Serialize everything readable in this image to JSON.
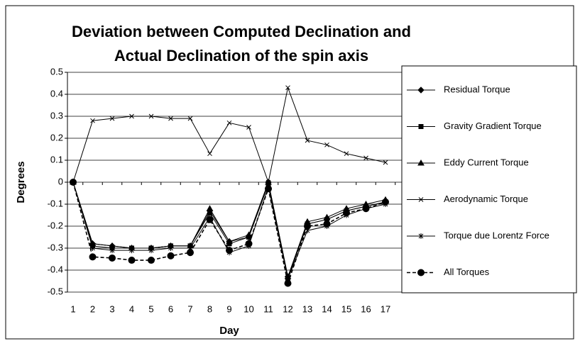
{
  "chart_data": {
    "type": "line",
    "title": "Deviation between Computed Declination  and",
    "subtitle": "Actual Declination of the spin axis",
    "x_label": "Day",
    "y_label": "Degrees",
    "categories": [
      "1",
      "2",
      "3",
      "4",
      "5",
      "6",
      "7",
      "8",
      "9",
      "10",
      "11",
      "12",
      "13",
      "14",
      "15",
      "16",
      "17"
    ],
    "series": [
      {
        "name": "Residual Torque",
        "color": "#000000",
        "marker": "diamond",
        "dash": false,
        "values": [
          0,
          -0.28,
          -0.29,
          -0.3,
          -0.3,
          -0.29,
          -0.29,
          -0.13,
          -0.27,
          -0.25,
          0,
          -0.43,
          -0.19,
          -0.17,
          -0.13,
          -0.11,
          -0.09
        ]
      },
      {
        "name": "Gravity Gradient Torque",
        "color": "#000000",
        "marker": "square",
        "dash": false,
        "values": [
          0,
          -0.29,
          -0.3,
          -0.3,
          -0.3,
          -0.29,
          -0.29,
          -0.14,
          -0.28,
          -0.25,
          -0.01,
          -0.44,
          -0.19,
          -0.17,
          -0.13,
          -0.11,
          -0.09
        ]
      },
      {
        "name": "Eddy Current Torque",
        "color": "#000000",
        "marker": "triangle",
        "dash": false,
        "values": [
          0,
          -0.28,
          -0.29,
          -0.3,
          -0.3,
          -0.29,
          -0.29,
          -0.12,
          -0.27,
          -0.24,
          0,
          -0.43,
          -0.18,
          -0.16,
          -0.12,
          -0.1,
          -0.08
        ]
      },
      {
        "name": "Aerodynamic Torque",
        "color": "#000000",
        "marker": "x",
        "dash": false,
        "values": [
          0,
          0.28,
          0.29,
          0.3,
          0.3,
          0.29,
          0.29,
          0.13,
          0.27,
          0.25,
          0,
          0.43,
          0.19,
          0.17,
          0.13,
          0.11,
          0.09
        ]
      },
      {
        "name": "Torque due Lorentz Force",
        "color": "#000000",
        "marker": "star",
        "dash": false,
        "values": [
          0,
          -0.3,
          -0.31,
          -0.31,
          -0.31,
          -0.3,
          -0.3,
          -0.16,
          -0.32,
          -0.29,
          -0.02,
          -0.44,
          -0.22,
          -0.2,
          -0.15,
          -0.12,
          -0.1
        ]
      },
      {
        "name": "All Torques",
        "color": "#000000",
        "marker": "circle",
        "dash": true,
        "values": [
          0,
          -0.34,
          -0.345,
          -0.355,
          -0.355,
          -0.335,
          -0.32,
          -0.17,
          -0.31,
          -0.28,
          -0.03,
          -0.46,
          -0.2,
          -0.19,
          -0.14,
          -0.12,
          -0.09
        ]
      }
    ],
    "ylim": [
      -0.5,
      0.5
    ],
    "yticks": [
      0.5,
      0.4,
      0.3,
      0.2,
      0.1,
      0,
      -0.1,
      -0.2,
      -0.3,
      -0.4,
      -0.5
    ],
    "grid": true,
    "legend": "right"
  }
}
